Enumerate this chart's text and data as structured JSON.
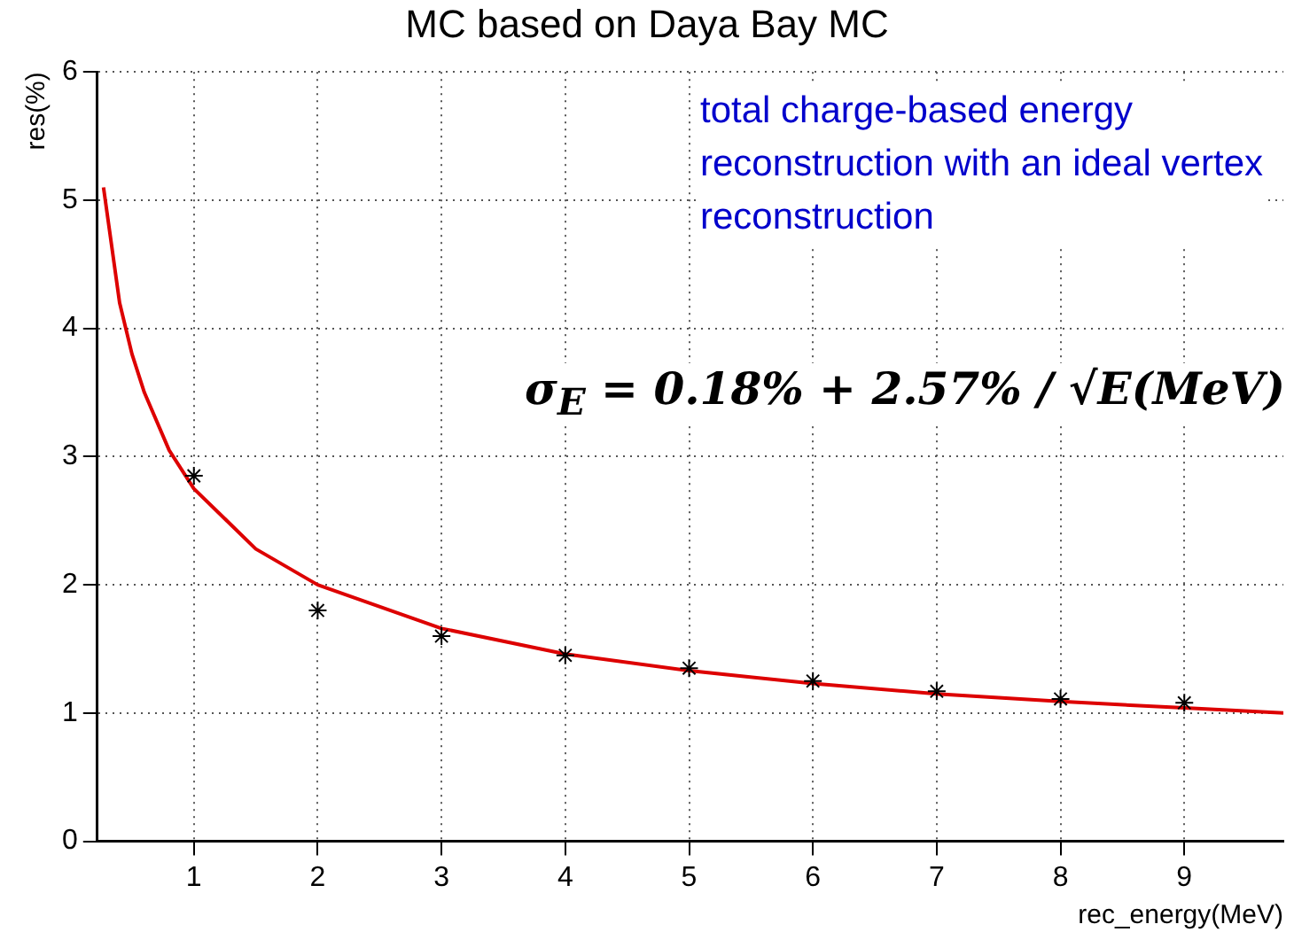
{
  "chart_data": {
    "type": "scatter",
    "title": "MC based on Daya Bay MC",
    "xlabel": "rec_energy(MeV)",
    "ylabel": "res(%)",
    "xlim": [
      0.22,
      9.8
    ],
    "xticks": [
      1,
      2,
      3,
      4,
      5,
      6,
      7,
      8,
      9
    ],
    "ylim": [
      0,
      6
    ],
    "yticks": [
      0,
      1,
      2,
      3,
      4,
      5,
      6
    ],
    "grid": true,
    "legend": false,
    "series": [
      {
        "color": "#000000",
        "marker": "cross",
        "x": [
          1,
          2,
          3,
          4,
          5,
          6,
          7,
          8,
          9
        ],
        "values": [
          2.85,
          1.8,
          1.6,
          1.45,
          1.35,
          1.25,
          1.17,
          1.11,
          1.08
        ]
      },
      {
        "type": "line",
        "color": "#dd0000",
        "marker": "none",
        "line_style": "solid",
        "x": [
          0.27,
          0.4,
          0.5,
          0.6,
          0.8,
          1,
          1.5,
          2,
          3,
          4,
          5,
          6,
          7,
          8,
          9,
          9.8
        ],
        "values": [
          5.1,
          4.2,
          3.8,
          3.5,
          3.05,
          2.75,
          2.28,
          2.0,
          1.66,
          1.46,
          1.33,
          1.23,
          1.15,
          1.09,
          1.04,
          1.0
        ]
      }
    ],
    "annotations": [
      "total charge-based energy reconstruction with an ideal vertex reconstruction",
      "σ$_{E}$ = 0.18% + 2.57% / √E(MeV)"
    ]
  }
}
